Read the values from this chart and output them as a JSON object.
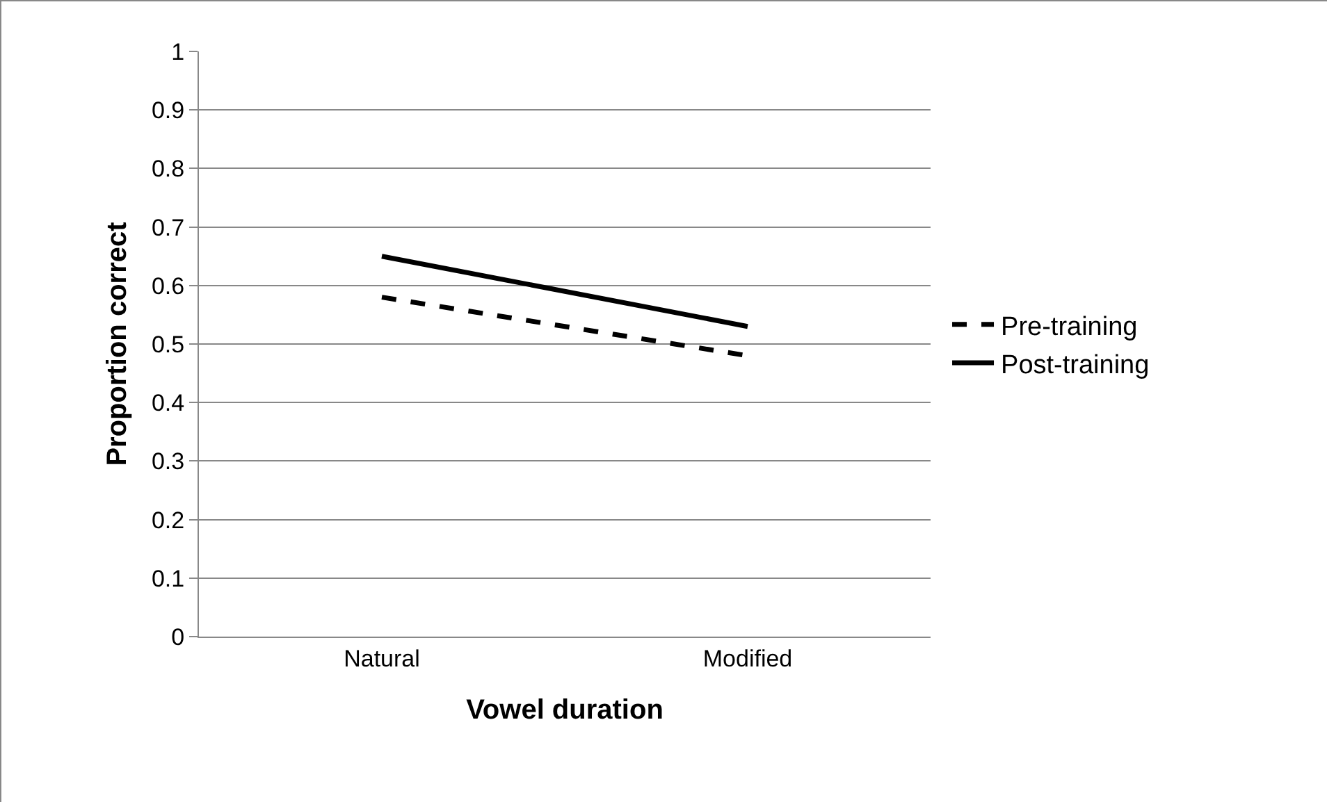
{
  "chart_data": {
    "type": "line",
    "xlabel": "Vowel duration",
    "ylabel": "Proportion correct",
    "categories": [
      "Natural",
      "Modified"
    ],
    "series": [
      {
        "name": "Pre-training",
        "color": "#000000",
        "line_style": "dashed",
        "values": [
          0.58,
          0.48
        ]
      },
      {
        "name": "Post-training",
        "color": "#000000",
        "line_style": "solid",
        "values": [
          0.65,
          0.53
        ]
      }
    ],
    "ylim": [
      0,
      1
    ],
    "yticks": [
      0,
      0.1,
      0.2,
      0.3,
      0.4,
      0.5,
      0.6,
      0.7,
      0.8,
      0.9,
      1
    ],
    "grid": "y",
    "legend": "right",
    "marker": "none"
  }
}
